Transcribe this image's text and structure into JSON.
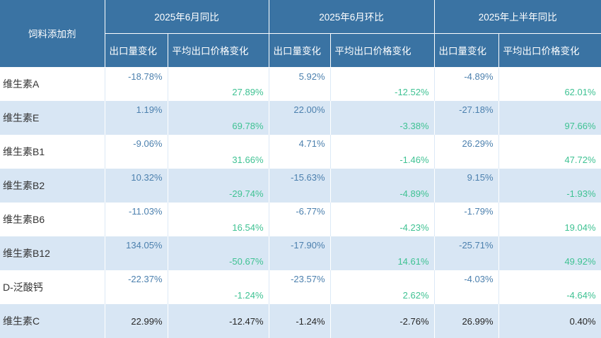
{
  "chart_data": {
    "type": "table",
    "corner_label": "饲料添加剂",
    "groups": [
      {
        "label": "2025年6月同比",
        "subcolumns": [
          "出口量变化",
          "平均出口价格变化"
        ]
      },
      {
        "label": "2025年6月环比",
        "subcolumns": [
          "出口量变化",
          "平均出口价格变化"
        ]
      },
      {
        "label": "2025年上半年同比",
        "subcolumns": [
          "出口量变化",
          "平均出口价格变化"
        ]
      }
    ],
    "rows": [
      {
        "label": "维生素A",
        "values": [
          "-18.78%",
          "27.89%",
          "5.92%",
          "-12.52%",
          "-4.89%",
          "62.01%"
        ],
        "layout": "split"
      },
      {
        "label": "维生素E",
        "values": [
          "1.19%",
          "69.78%",
          "22.00%",
          "-3.38%",
          "-27.18%",
          "97.66%"
        ],
        "layout": "split"
      },
      {
        "label": "维生素B1",
        "values": [
          "-9.06%",
          "31.66%",
          "4.71%",
          "-1.46%",
          "26.29%",
          "47.72%"
        ],
        "layout": "split"
      },
      {
        "label": "维生素B2",
        "values": [
          "10.32%",
          "-29.74%",
          "-15.63%",
          "-4.89%",
          "9.15%",
          "-1.93%"
        ],
        "layout": "split"
      },
      {
        "label": "维生素B6",
        "values": [
          "-11.03%",
          "16.54%",
          "-6.77%",
          "-4.23%",
          "-1.79%",
          "19.04%"
        ],
        "layout": "split"
      },
      {
        "label": "维生素B12",
        "values": [
          "134.05%",
          "-50.67%",
          "-17.90%",
          "14.61%",
          "-25.71%",
          "49.92%"
        ],
        "layout": "split"
      },
      {
        "label": "D-泛酸钙",
        "values": [
          "-22.37%",
          "-1.24%",
          "-23.57%",
          "2.62%",
          "-4.03%",
          "-4.64%"
        ],
        "layout": "split"
      },
      {
        "label": "维生素C",
        "values": [
          "22.99%",
          "-12.47%",
          "-1.24%",
          "-2.76%",
          "26.99%",
          "0.40%"
        ],
        "layout": "center"
      }
    ]
  },
  "colors": {
    "header_bg": "#3a73a3",
    "header_text": "#ffffff",
    "alt_row_bg": "#d8e6f4",
    "volume_value_text": "#4c80ae",
    "price_value_text": "#3fc293",
    "label_text": "#333333",
    "center_row_text": "#262626",
    "white_row_divider": "#dce9f6",
    "alt_row_divider": "#ffffff"
  }
}
